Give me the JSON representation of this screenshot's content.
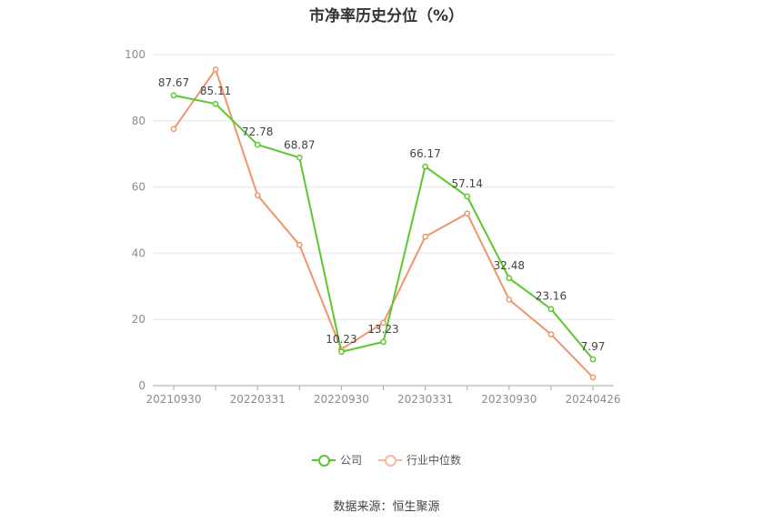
{
  "chart_data": {
    "type": "line",
    "title": "市净率历史分位（%）",
    "x": [
      "20210930",
      "20211231",
      "20220331",
      "20220630",
      "20220930",
      "20221231",
      "20230331",
      "20230630",
      "20230930",
      "20231231",
      "20240426"
    ],
    "x_tick_labels": [
      "20210930",
      "20220331",
      "20220930",
      "20230331",
      "20230930",
      "20240426"
    ],
    "ylim": [
      0,
      100
    ],
    "y_ticks": [
      0,
      20,
      40,
      60,
      80,
      100
    ],
    "grid": true,
    "legend_position": "bottom",
    "series": [
      {
        "name": "公司",
        "color": "#5cc72f",
        "values": [
          87.67,
          85.11,
          72.78,
          68.87,
          10.23,
          13.23,
          66.17,
          57.14,
          32.48,
          23.16,
          7.97
        ],
        "labels": [
          "87.67",
          "85.11",
          "72.78",
          "68.87",
          "10.23",
          "13.23",
          "66.17",
          "57.14",
          "32.48",
          "23.16",
          "7.97"
        ]
      },
      {
        "name": "行业中位数",
        "color": "#f0956c",
        "values": [
          77.5,
          95.5,
          57.5,
          42.5,
          11.0,
          19.0,
          45.0,
          52.0,
          26.0,
          15.5,
          2.5
        ]
      }
    ]
  },
  "source": "数据来源：恒生聚源"
}
